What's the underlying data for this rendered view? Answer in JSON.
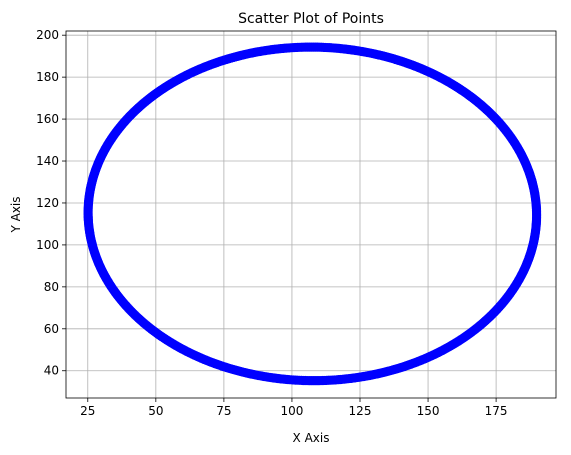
{
  "chart_data": {
    "type": "scatter",
    "title": "Scatter Plot of Points",
    "xlabel": "X Axis",
    "ylabel": "Y Axis",
    "xlim": [
      17,
      197
    ],
    "ylim": [
      27,
      202
    ],
    "xticks": [
      25,
      50,
      75,
      100,
      125,
      150,
      175
    ],
    "yticks": [
      40,
      60,
      80,
      100,
      120,
      140,
      160,
      180,
      200
    ],
    "grid": true,
    "marker_color": "#0000ff",
    "shape": "ellipse",
    "ellipse": {
      "center_x": 107.5,
      "center_y": 114.8,
      "radius_x": 82.4,
      "radius_y": 79.5,
      "tilt_degrees": -5.5
    },
    "point_count": 720
  }
}
